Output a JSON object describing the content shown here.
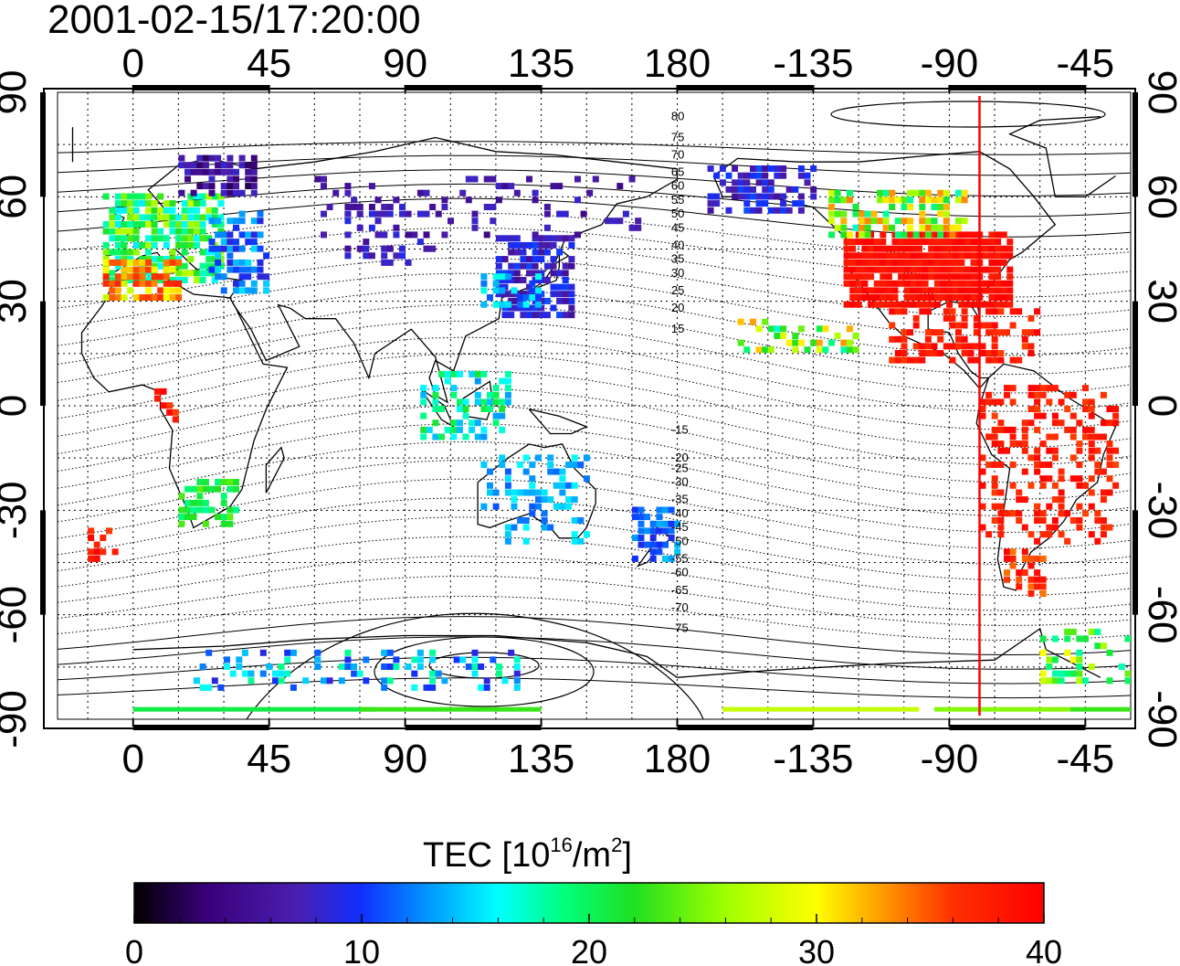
{
  "title": "2001-02-15/17:20:00",
  "map": {
    "lon_ticks": [
      "0",
      "45",
      "90",
      "135",
      "180",
      "-135",
      "-90",
      "-45"
    ],
    "lat_ticks": [
      "90",
      "60",
      "30",
      "0",
      "-30",
      "-60",
      "-90"
    ],
    "contour_labels": [
      "80",
      "75",
      "70",
      "65",
      "60",
      "55",
      "50",
      "45",
      "40",
      "35",
      "30",
      "25",
      "20",
      "15",
      "-15",
      "-20",
      "-25",
      "-30",
      "-35",
      "-40",
      "-45",
      "-50",
      "-55",
      "-60",
      "-65",
      "-70",
      "-75"
    ],
    "marker_line_longitude": -80
  },
  "colorbar": {
    "label_main": "TEC  [10",
    "label_sup1": "16",
    "label_mid": "/m",
    "label_sup2": "2",
    "label_end": "]",
    "ticks": [
      "0",
      "10",
      "20",
      "30",
      "40"
    ],
    "range": [
      0,
      40
    ],
    "colors": [
      "#000000",
      "#3a007a",
      "#4a1fb0",
      "#1030ff",
      "#00a0ff",
      "#00ffff",
      "#00ff80",
      "#20e020",
      "#a0ff00",
      "#ffff00",
      "#ff9000",
      "#ff3000",
      "#ff0000"
    ]
  }
}
